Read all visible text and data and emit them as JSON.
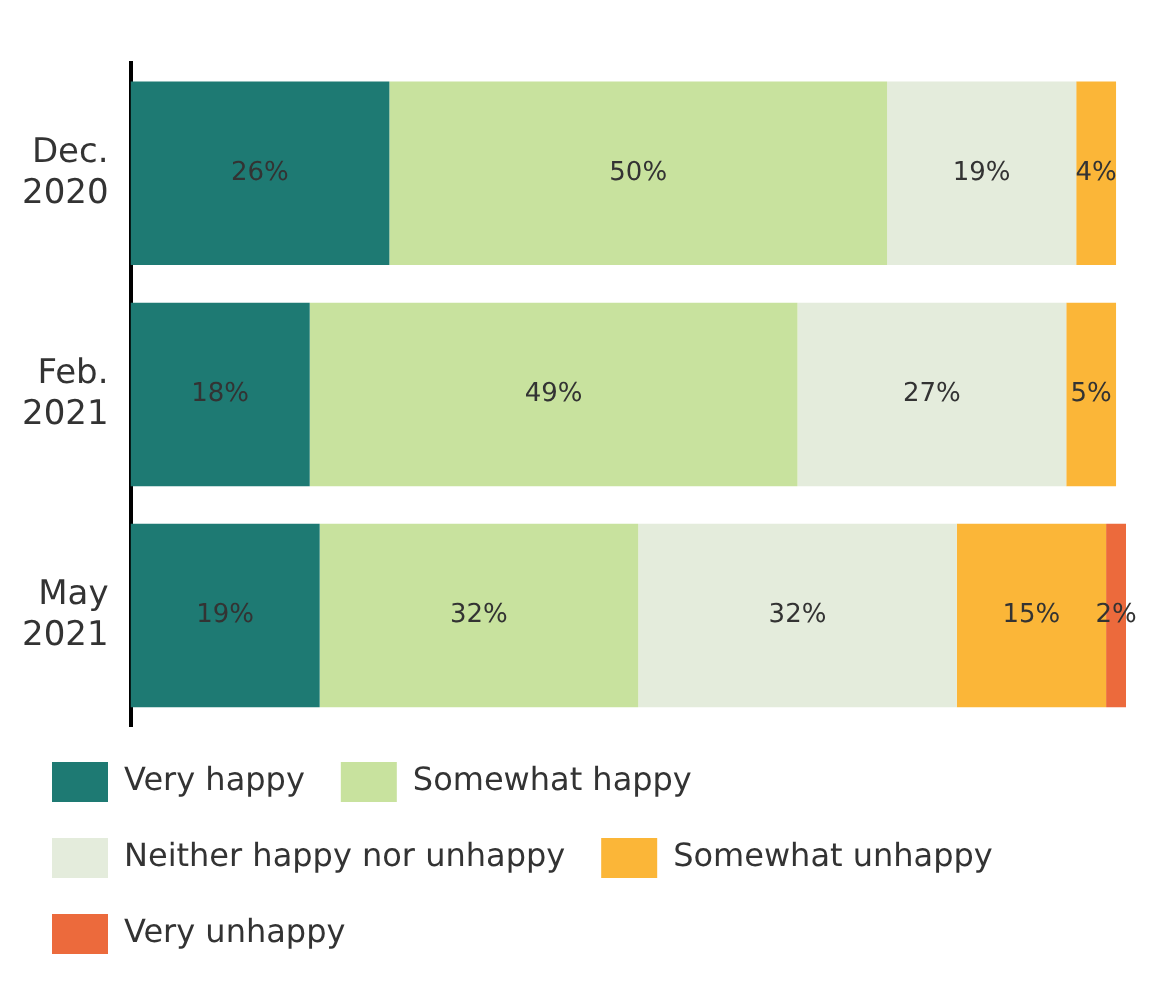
{
  "chart_data": {
    "type": "bar",
    "orientation": "horizontal",
    "stacked": true,
    "categories": [
      "Dec. 2020",
      "Feb. 2021",
      "May 2021"
    ],
    "series": [
      {
        "name": "Very happy",
        "color": "#1e7a73",
        "values": [
          26,
          18,
          19
        ],
        "value_labels": [
          "26%",
          "18%",
          "19%"
        ]
      },
      {
        "name": "Somewhat happy",
        "color": "#c8e29e",
        "values": [
          50,
          49,
          32
        ],
        "value_labels": [
          "50%",
          "49%",
          "32%"
        ]
      },
      {
        "name": "Neither happy nor unhappy",
        "color": "#e4ecdc",
        "values": [
          19,
          27,
          32
        ],
        "value_labels": [
          "19%",
          "27%",
          "32%"
        ]
      },
      {
        "name": "Somewhat unhappy",
        "color": "#fbb638",
        "values": [
          4,
          5,
          15
        ],
        "value_labels": [
          "4%",
          "5%",
          "15%"
        ]
      },
      {
        "name": "Very unhappy",
        "color": "#ec6a3c",
        "values": [
          null,
          null,
          2
        ],
        "value_labels": [
          null,
          null,
          "2%"
        ]
      }
    ],
    "tick_labels": "y",
    "legend": "bottom"
  }
}
